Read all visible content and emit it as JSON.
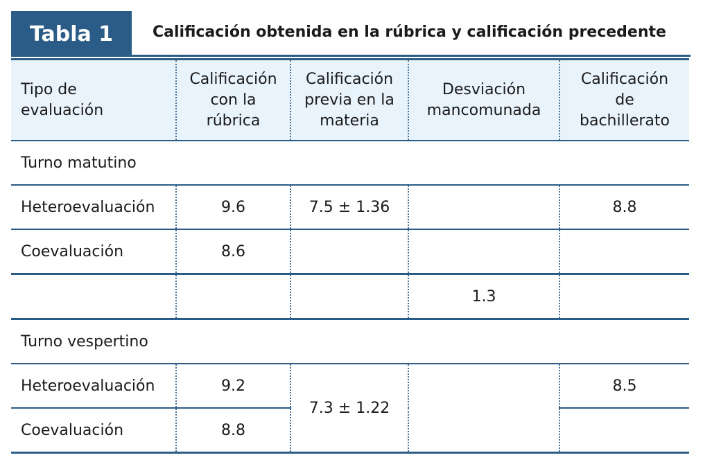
{
  "table_label": "Tabla 1",
  "title": "Calificación obtenida en la rúbrica y calificación precedente",
  "headers": [
    "Tipo de\nevaluación",
    "Calificación\ncon la\nrúbrica",
    "Calificación\nprevia en la\nmateria",
    "Desviación\nmancomunada",
    "Calificación\nde\nbachillerato"
  ],
  "matutino": {
    "section": "Turno matutino",
    "hetero": {
      "label": "Heteroevaluación",
      "rubrica": "9.6",
      "previa": "7.5 ± 1.36",
      "bachillerato": "8.8"
    },
    "coe": {
      "label": "Coevaluación",
      "rubrica": "8.6"
    },
    "desviacion": "1.3"
  },
  "vespertino": {
    "section": "Turno vespertino",
    "hetero": {
      "label": "Heteroevaluación",
      "rubrica": "9.2",
      "bachillerato": "8.5"
    },
    "previa": "7.3 ± 1.22",
    "coe": {
      "label": "Coevaluación",
      "rubrica": "8.8"
    }
  }
}
